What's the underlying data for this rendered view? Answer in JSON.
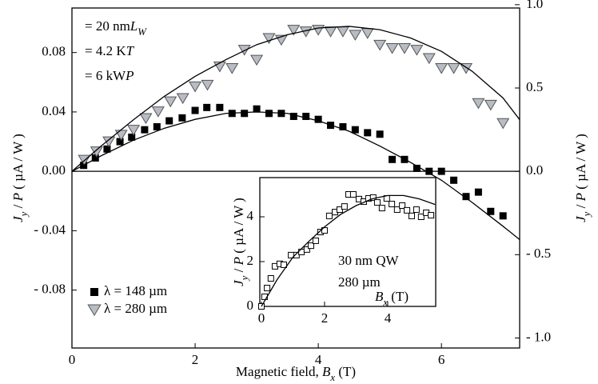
{
  "chart_data": [
    {
      "type": "scatter",
      "x_label": {
        "text": "Magnetic field, ",
        "symbol": "B",
        "sub": "x",
        "unit": " (T)"
      },
      "y_label": {
        "symbol": "J",
        "sub": "y",
        "sep": " / ",
        "symbol2": "P",
        "unit": " ( µA / W )"
      },
      "y2_label": {
        "symbol": "J",
        "sub": "y",
        "sep": " / ",
        "symbol2": "P",
        "unit": " ( µA / W )"
      },
      "annotations": [
        {
          "symbol": "L",
          "sub": "W",
          "text": " = 20 nm"
        },
        {
          "symbol": "T",
          "text": " = 4.2 K"
        },
        {
          "symbol": "P",
          "text": " = 6 kW"
        }
      ],
      "xlim": [
        0,
        7.27
      ],
      "xticks": [
        0,
        2,
        4,
        6
      ],
      "ylim": [
        -0.119,
        0.11
      ],
      "yticks": [
        {
          "value": -0.08,
          "label": "- 0.08"
        },
        {
          "value": -0.04,
          "label": "- 0.04"
        },
        {
          "value": 0,
          "label": "0.00"
        },
        0.04,
        0.08
      ],
      "y2lim": [
        -1.06,
        0.98
      ],
      "y2ticks": [
        {
          "value": -1,
          "label": "- 1.0"
        },
        {
          "value": -0.5,
          "label": "- 0.5"
        },
        {
          "value": 0,
          "label": "0.0"
        },
        0.5,
        {
          "value": 1,
          "label": "1.0"
        }
      ],
      "legend": "lower left",
      "series": [
        {
          "name": "λ = 148 µm",
          "marker": "square",
          "color": "#000000",
          "x": [
            0.19,
            0.38,
            0.57,
            0.78,
            0.97,
            1.18,
            1.38,
            1.58,
            1.79,
            2.0,
            2.19,
            2.4,
            2.6,
            2.8,
            3.0,
            3.2,
            3.4,
            3.6,
            3.8,
            4.0,
            4.2,
            4.4,
            4.6,
            4.8,
            5.0,
            5.2,
            5.4,
            5.6,
            5.8,
            6.0,
            6.2,
            6.4,
            6.6,
            6.8,
            7.0
          ],
          "values": [
            0.004,
            0.009,
            0.015,
            0.02,
            0.023,
            0.028,
            0.03,
            0.034,
            0.036,
            0.041,
            0.043,
            0.043,
            0.039,
            0.039,
            0.042,
            0.039,
            0.039,
            0.037,
            0.037,
            0.035,
            0.031,
            0.03,
            0.028,
            0.026,
            0.025,
            0.008,
            0.008,
            0.002,
            0.0,
            0.0,
            -0.006,
            -0.017,
            -0.014,
            -0.027,
            -0.03
          ]
        },
        {
          "name": "λ = 280 µm",
          "marker": "triangle",
          "color": "#b8bcc4",
          "axis": "y2",
          "x": [
            0.2,
            0.4,
            0.6,
            0.8,
            1.0,
            1.2,
            1.4,
            1.6,
            1.8,
            2.0,
            2.2,
            2.4,
            2.6,
            2.8,
            3.0,
            3.2,
            3.4,
            3.6,
            3.8,
            4.0,
            4.2,
            4.4,
            4.6,
            4.8,
            5.0,
            5.2,
            5.4,
            5.6,
            5.8,
            6.0,
            6.2,
            6.4,
            6.6,
            6.8,
            7.0
          ],
          "values": [
            0.07,
            0.12,
            0.18,
            0.22,
            0.25,
            0.32,
            0.36,
            0.42,
            0.44,
            0.51,
            0.52,
            0.63,
            0.62,
            0.73,
            0.67,
            0.8,
            0.79,
            0.85,
            0.84,
            0.85,
            0.84,
            0.84,
            0.82,
            0.83,
            0.76,
            0.74,
            0.74,
            0.73,
            0.68,
            0.62,
            0.62,
            0.62,
            0.41,
            0.4,
            0.29
          ]
        },
        {
          "marker": "line",
          "color": "#000000",
          "x": [
            0,
            0.5,
            1,
            1.5,
            2,
            2.5,
            3,
            3.5,
            4,
            4.5,
            5,
            5.5,
            6,
            6.5,
            7,
            7.27
          ],
          "values": [
            0,
            0.011,
            0.021,
            0.029,
            0.035,
            0.039,
            0.04,
            0.039,
            0.034,
            0.027,
            0.017,
            0.006,
            -0.006,
            -0.021,
            -0.037,
            -0.046
          ]
        },
        {
          "marker": "line",
          "color": "#000000",
          "axis": "y2",
          "x": [
            0,
            0.5,
            1,
            1.5,
            2,
            2.5,
            3,
            3.5,
            4,
            4.5,
            5,
            5.5,
            6,
            6.5,
            7,
            7.27
          ],
          "values": [
            0,
            0.16,
            0.31,
            0.45,
            0.57,
            0.67,
            0.76,
            0.82,
            0.86,
            0.87,
            0.85,
            0.8,
            0.72,
            0.6,
            0.44,
            0.31
          ]
        }
      ]
    },
    {
      "type": "scatter",
      "x_label": {
        "symbol": "B",
        "sub": "x",
        "unit": " (T)"
      },
      "y_label": {
        "symbol": "J",
        "sub": "y",
        "sep": " / ",
        "symbol2": "P",
        "unit": " ( µA / W )"
      },
      "annotations": [
        {
          "text": "30 nm QW"
        },
        {
          "text": "280 µm"
        }
      ],
      "xlim": [
        -0.05,
        5.52
      ],
      "xticks": [
        0,
        2,
        4
      ],
      "ylim": [
        0,
        5.75
      ],
      "yticks": [
        0,
        2,
        4
      ],
      "series": [
        {
          "marker": "open-square",
          "color": "#000000",
          "x": [
            0,
            0.1,
            0.18,
            0.3,
            0.43,
            0.58,
            0.71,
            0.94,
            1.11,
            1.27,
            1.44,
            1.57,
            1.72,
            1.87,
            2.0,
            2.15,
            2.33,
            2.48,
            2.63,
            2.76,
            2.91,
            3.09,
            3.24,
            3.39,
            3.54,
            3.67,
            3.82,
            3.97,
            4.13,
            4.3,
            4.46,
            4.61,
            4.76,
            4.91,
            5.06,
            5.22,
            5.37
          ],
          "values": [
            0,
            0.43,
            0.82,
            1.25,
            1.79,
            1.9,
            1.86,
            2.29,
            2.29,
            2.43,
            2.54,
            2.71,
            2.93,
            3.32,
            3.39,
            4.04,
            4.21,
            4.32,
            4.46,
            5.0,
            5.0,
            4.79,
            4.68,
            4.82,
            4.86,
            4.64,
            4.39,
            4.82,
            4.57,
            4.32,
            4.5,
            4.29,
            4.04,
            4.32,
            4.0,
            4.18,
            4.07
          ]
        },
        {
          "marker": "line",
          "color": "#000000",
          "x": [
            0,
            0.5,
            1,
            1.5,
            2,
            2.5,
            3,
            3.5,
            4,
            4.5,
            5,
            5.5
          ],
          "values": [
            0,
            1.2,
            2.2,
            2.9,
            3.55,
            4.1,
            4.5,
            4.8,
            4.95,
            4.95,
            4.8,
            4.55
          ]
        }
      ]
    }
  ]
}
